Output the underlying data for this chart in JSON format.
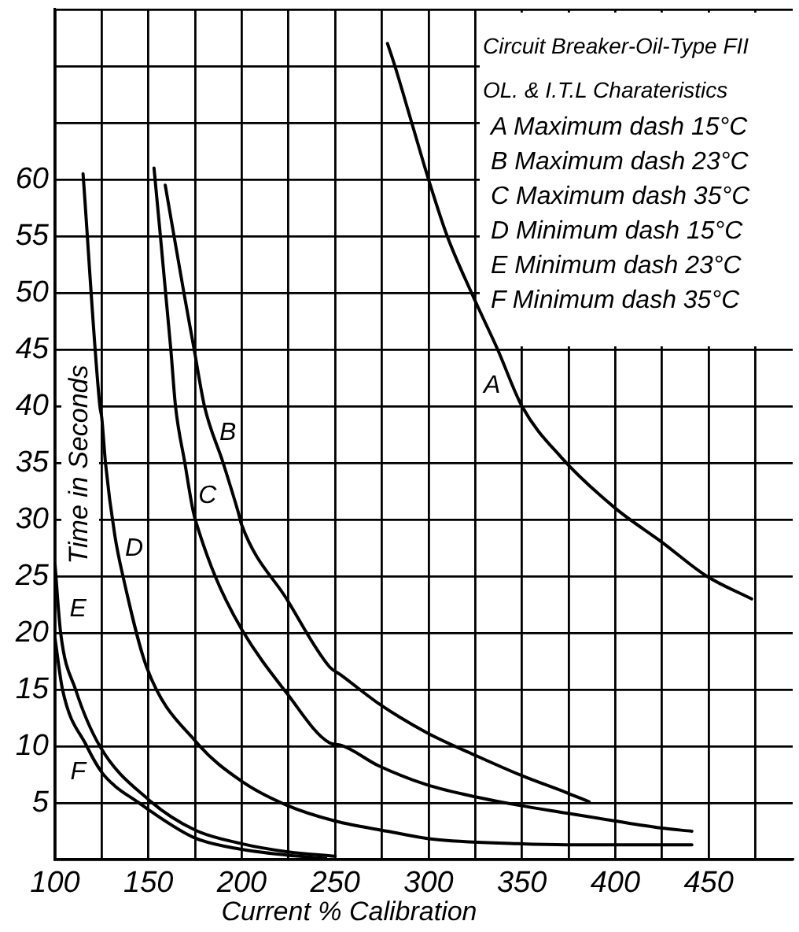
{
  "chart_data": {
    "type": "line",
    "title": "Circuit Breaker-Oil-Type FII",
    "subtitle": "OL. & I.T.L Charateristics",
    "xlabel": "Current % Calibration",
    "ylabel": "Time in Seconds",
    "annotations": [
      "A Maximum dash 15°C",
      "B Maximum dash 23°C",
      "C Maximum dash 35°C",
      "D Minimum dash 15°C",
      "E Minimum dash 23°C",
      "F Minimum dash 35°C"
    ],
    "xlim": [
      100,
      495
    ],
    "ylim": [
      0,
      75
    ],
    "xticks": [
      100,
      {
        "value": 125,
        "label": null
      },
      150,
      {
        "value": 175,
        "label": null
      },
      200,
      {
        "value": 225,
        "label": null
      },
      250,
      {
        "value": 275,
        "label": null
      },
      300,
      {
        "value": 325,
        "label": null
      },
      350,
      {
        "value": 375,
        "label": null
      },
      400,
      {
        "value": 425,
        "label": null
      },
      450,
      {
        "value": 475,
        "label": null
      }
    ],
    "yticks": [
      {
        "value": 0,
        "label": null
      },
      5,
      10,
      15,
      20,
      25,
      30,
      35,
      40,
      45,
      50,
      55,
      60,
      {
        "value": 65,
        "label": null
      },
      {
        "value": 70,
        "label": null
      },
      {
        "value": 75,
        "label": null
      }
    ],
    "grid": true,
    "marker": "none",
    "series": [
      {
        "name": "A",
        "color": "#000000",
        "x": [
          278,
          282,
          291,
          300,
          310,
          323,
          337,
          350,
          371,
          400,
          425,
          449,
          473
        ],
        "values": [
          72,
          70,
          65,
          60,
          55,
          50,
          45,
          40,
          35.5,
          31,
          28,
          25,
          23
        ]
      },
      {
        "name": "B",
        "color": "#000000",
        "x": [
          159,
          169,
          174.5,
          180,
          190,
          198,
          200,
          224,
          247,
          253,
          273,
          299,
          325,
          350,
          374,
          386
        ],
        "values": [
          59.5,
          50,
          45,
          40,
          35,
          30.7,
          29.5,
          23,
          17,
          16.3,
          13.8,
          11.2,
          9.2,
          7.4,
          5.9,
          5.1
        ]
      },
      {
        "name": "C",
        "color": "#000000",
        "x": [
          153,
          162,
          164.5,
          169.5,
          174,
          176,
          186,
          200,
          224,
          247,
          253,
          273,
          299,
          326,
          348,
          374,
          400,
          424,
          441
        ],
        "values": [
          61,
          45,
          40,
          35,
          30.7,
          29.5,
          24.9,
          20.3,
          14.7,
          10.3,
          10.1,
          8.3,
          6.6,
          5.5,
          4.8,
          4.1,
          3.4,
          2.8,
          2.5
        ]
      },
      {
        "name": "D",
        "color": "#000000",
        "x": [
          115,
          124,
          125,
          127,
          132,
          136.5,
          149,
          176,
          200,
          224,
          250,
          278,
          302,
          348,
          374,
          424,
          441
        ],
        "values": [
          60.5,
          40,
          39,
          35,
          28.6,
          24.9,
          17,
          10.3,
          6.9,
          4.8,
          3.4,
          2.5,
          1.8,
          1.4,
          1.3,
          1.3,
          1.3
        ]
      },
      {
        "name": "E",
        "color": "#000000",
        "x": [
          100,
          103,
          111,
          124,
          150,
          175,
          200,
          224,
          250
        ],
        "values": [
          26,
          20,
          15,
          10,
          5.3,
          2.6,
          1.4,
          0.7,
          0.3
        ]
      },
      {
        "name": "F",
        "color": "#000000",
        "x": [
          100,
          104,
          117,
          125,
          132,
          145,
          150,
          175,
          200,
          224,
          245
        ],
        "values": [
          19.5,
          15,
          10,
          7.7,
          6.5,
          5,
          4.4,
          1.9,
          0.9,
          0.4,
          0.1
        ]
      }
    ]
  }
}
